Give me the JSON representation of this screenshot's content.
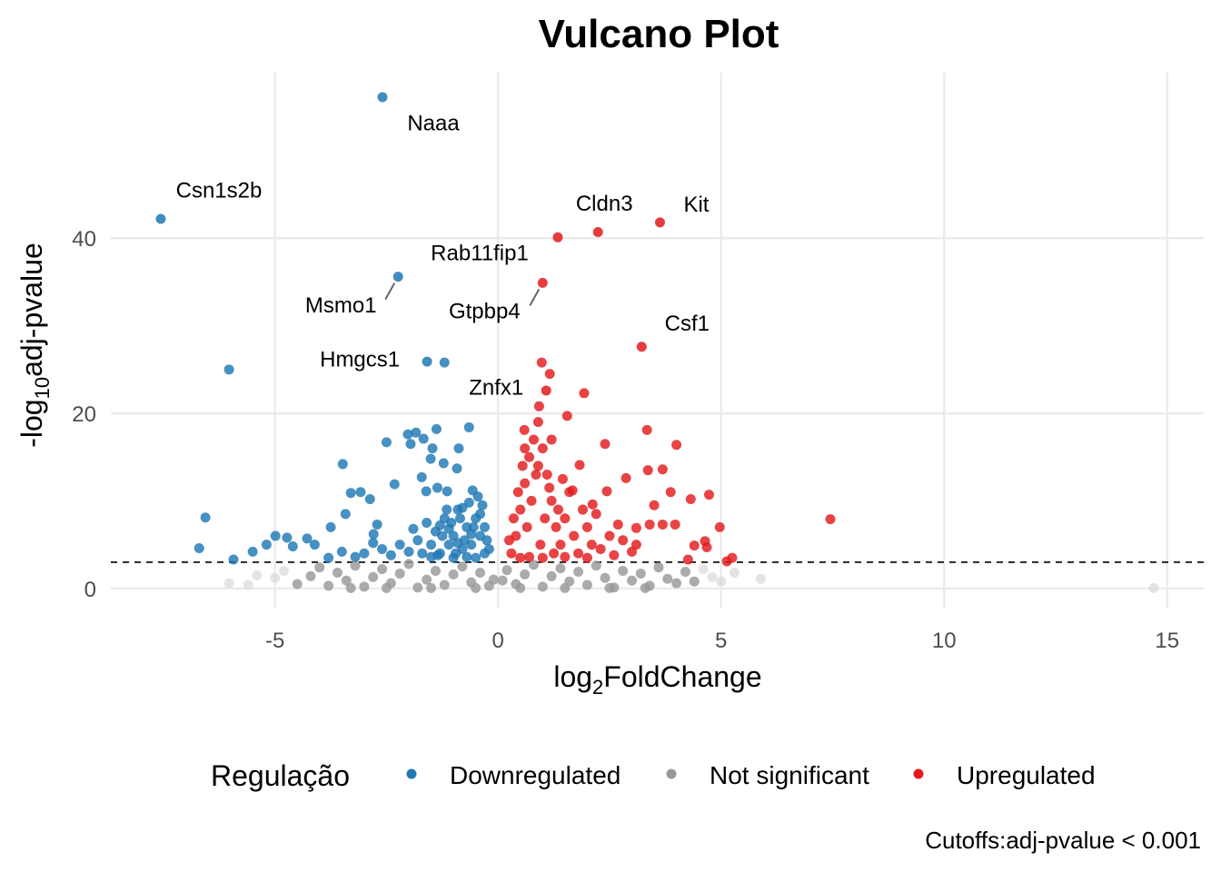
{
  "chart_data": {
    "type": "scatter",
    "title": "Vulcano Plot",
    "xlabel": {
      "main": "log",
      "sub": "2",
      "rest": "FoldChange"
    },
    "ylabel": {
      "main": "-log",
      "sub": "10",
      "rest": "adj-pvalue"
    },
    "xlim": [
      -8.68,
      15.82
    ],
    "ylim": [
      -2.3,
      58.9
    ],
    "xticks": [
      -5,
      0,
      5,
      10,
      15
    ],
    "xtick_labels": [
      "-5",
      "0",
      "5",
      "10",
      "15"
    ],
    "yticks": [
      0,
      20,
      40
    ],
    "ytick_labels": [
      "0",
      "20",
      "40"
    ],
    "grid": true,
    "cutoff_line_y": 3,
    "caption": "Cutoffs:adj-pvalue < 0.001",
    "legend": {
      "title": "Regulação",
      "position": "bottom",
      "entries": [
        "Downregulated",
        "Not significant",
        "Upregulated"
      ]
    },
    "colors": {
      "Downregulated": "#1f78b4",
      "Not significant": "#999999",
      "Upregulated": "#e31a1c"
    },
    "labeled_points": [
      {
        "gene": "Naaa",
        "x": -2.59,
        "y": 56.1,
        "group": "Downregulated"
      },
      {
        "gene": "Csn1s2b",
        "x": -7.56,
        "y": 42.2,
        "group": "Downregulated"
      },
      {
        "gene": "Cldn3",
        "x": 2.24,
        "y": 40.7,
        "group": "Upregulated"
      },
      {
        "gene": "Kit",
        "x": 3.63,
        "y": 41.8,
        "group": "Upregulated"
      },
      {
        "gene": "Rab11fip1",
        "x": 1.34,
        "y": 40.1,
        "group": "Upregulated"
      },
      {
        "gene": "Msmo1",
        "x": -2.24,
        "y": 35.6,
        "group": "Downregulated"
      },
      {
        "gene": "Gtpbp4",
        "x": 1.0,
        "y": 34.9,
        "group": "Upregulated"
      },
      {
        "gene": "Csf1",
        "x": 3.22,
        "y": 27.6,
        "group": "Upregulated"
      },
      {
        "gene": "Hmgcs1",
        "x": -1.59,
        "y": 25.9,
        "group": "Downregulated"
      },
      {
        "gene": "Znfx1",
        "x": 1.08,
        "y": 22.6,
        "group": "Upregulated"
      }
    ],
    "series": [
      {
        "name": "Not significant",
        "points": [
          [
            14.7,
            0.05
          ],
          [
            5.89,
            1.1
          ],
          [
            -6.03,
            0.6
          ],
          [
            -5.6,
            0.4
          ],
          [
            -5.4,
            1.5
          ],
          [
            -5.0,
            1.2
          ],
          [
            -4.8,
            2.0
          ],
          [
            -4.5,
            0.5
          ],
          [
            -4.2,
            1.4
          ],
          [
            -4.0,
            2.4
          ],
          [
            -3.8,
            0.3
          ],
          [
            -3.6,
            1.8
          ],
          [
            -3.4,
            0.9
          ],
          [
            -3.2,
            2.6
          ],
          [
            -3.0,
            0.2
          ],
          [
            -2.8,
            1.3
          ],
          [
            -2.6,
            2.2
          ],
          [
            -2.4,
            0.6
          ],
          [
            -2.2,
            1.7
          ],
          [
            -2.0,
            2.8
          ],
          [
            -1.8,
            0.1
          ],
          [
            -1.6,
            1.0
          ],
          [
            -1.4,
            2.0
          ],
          [
            -1.2,
            0.4
          ],
          [
            -1.0,
            1.6
          ],
          [
            -0.8,
            2.5
          ],
          [
            -0.6,
            0.7
          ],
          [
            -0.4,
            1.8
          ],
          [
            -0.2,
            0.3
          ],
          [
            -0.1,
            1.0
          ],
          [
            0.1,
            0.9
          ],
          [
            0.2,
            2.1
          ],
          [
            0.4,
            0.5
          ],
          [
            0.6,
            1.6
          ],
          [
            0.8,
            2.7
          ],
          [
            1.0,
            0.2
          ],
          [
            1.2,
            1.4
          ],
          [
            1.4,
            2.3
          ],
          [
            1.6,
            0.8
          ],
          [
            1.8,
            1.9
          ],
          [
            2.0,
            0.4
          ],
          [
            2.2,
            2.6
          ],
          [
            2.4,
            1.2
          ],
          [
            2.6,
            0.1
          ],
          [
            2.8,
            2.0
          ],
          [
            3.0,
            0.9
          ],
          [
            3.2,
            1.7
          ],
          [
            3.4,
            0.3
          ],
          [
            3.6,
            2.4
          ],
          [
            3.8,
            1.1
          ],
          [
            4.0,
            0.6
          ],
          [
            4.2,
            1.9
          ],
          [
            4.4,
            0.8
          ],
          [
            4.6,
            2.2
          ],
          [
            4.8,
            1.3
          ],
          [
            5.0,
            0.8
          ],
          [
            5.3,
            1.8
          ],
          [
            -0.5,
            0.05
          ],
          [
            0.5,
            0.05
          ],
          [
            1.5,
            0.05
          ],
          [
            -1.5,
            0.05
          ],
          [
            2.5,
            0.05
          ],
          [
            -2.5,
            0.05
          ],
          [
            3.3,
            0.05
          ],
          [
            -3.3,
            0.05
          ]
        ]
      },
      {
        "name": "Downregulated",
        "points": [
          [
            -6.03,
            25.0
          ],
          [
            -1.2,
            25.8
          ],
          [
            -6.56,
            8.1
          ],
          [
            -6.7,
            4.6
          ],
          [
            -5.93,
            3.3
          ],
          [
            -5.5,
            4.2
          ],
          [
            -5.19,
            5.0
          ],
          [
            -4.99,
            6.0
          ],
          [
            -4.73,
            5.8
          ],
          [
            -4.6,
            4.8
          ],
          [
            -4.28,
            5.7
          ],
          [
            -4.11,
            5.0
          ],
          [
            -3.75,
            7.0
          ],
          [
            -3.48,
            14.2
          ],
          [
            -3.42,
            8.5
          ],
          [
            -3.3,
            10.9
          ],
          [
            -3.08,
            11.0
          ],
          [
            -2.87,
            10.2
          ],
          [
            -2.79,
            6.2
          ],
          [
            -2.71,
            7.3
          ],
          [
            -2.5,
            16.7
          ],
          [
            -2.32,
            11.9
          ],
          [
            -2.02,
            17.6
          ],
          [
            -1.96,
            16.5
          ],
          [
            -1.84,
            17.8
          ],
          [
            -1.67,
            17.1
          ],
          [
            -1.47,
            16.0
          ],
          [
            -1.38,
            18.2
          ],
          [
            -1.71,
            12.7
          ],
          [
            -1.61,
            11.1
          ],
          [
            -1.51,
            14.8
          ],
          [
            -1.36,
            11.5
          ],
          [
            -1.22,
            14.3
          ],
          [
            -1.14,
            11.1
          ],
          [
            -0.92,
            13.7
          ],
          [
            -0.88,
            16.0
          ],
          [
            -0.65,
            18.4
          ],
          [
            -0.57,
            11.2
          ],
          [
            -0.3,
            4
          ],
          [
            -0.4,
            6
          ],
          [
            -0.5,
            8
          ],
          [
            -0.6,
            5
          ],
          [
            -0.7,
            7
          ],
          [
            -0.8,
            4.5
          ],
          [
            -0.9,
            9
          ],
          [
            -1.0,
            6
          ],
          [
            -1.1,
            5
          ],
          [
            -1.2,
            8
          ],
          [
            -1.3,
            4
          ],
          [
            -1.4,
            6.5
          ],
          [
            -1.5,
            5
          ],
          [
            -1.6,
            7.5
          ],
          [
            -1.7,
            4
          ],
          [
            -1.8,
            5.5
          ],
          [
            -1.9,
            6.8
          ],
          [
            -2.0,
            4.2
          ],
          [
            -2.2,
            5
          ],
          [
            -2.4,
            3.8
          ],
          [
            -2.6,
            4.5
          ],
          [
            -2.8,
            5.2
          ],
          [
            -3.0,
            4
          ],
          [
            -3.2,
            3.6
          ],
          [
            -3.5,
            4.2
          ],
          [
            -3.8,
            3.5
          ],
          [
            -0.35,
            9.5
          ],
          [
            -0.45,
            10.5
          ],
          [
            -0.55,
            7
          ],
          [
            -0.65,
            9.8
          ],
          [
            -0.75,
            5.5
          ],
          [
            -0.85,
            8
          ],
          [
            -0.95,
            4
          ],
          [
            -1.05,
            7.5
          ],
          [
            -1.15,
            9
          ],
          [
            -1.25,
            6
          ],
          [
            -1.35,
            3.8
          ],
          [
            -0.25,
            5.5
          ],
          [
            -0.3,
            7
          ],
          [
            -0.5,
            3.5
          ],
          [
            -0.7,
            3.6
          ],
          [
            -1.0,
            3.5
          ],
          [
            -1.5,
            3.6
          ],
          [
            -0.6,
            6.2
          ],
          [
            -0.9,
            5.2
          ],
          [
            -1.1,
            6.8
          ],
          [
            -1.3,
            7.2
          ],
          [
            -0.4,
            8.5
          ],
          [
            -0.8,
            9.2
          ],
          [
            -0.2,
            4.5
          ]
        ]
      },
      {
        "name": "Upregulated",
        "points": [
          [
            0.98,
            25.8
          ],
          [
            7.45,
            7.9
          ],
          [
            5.25,
            3.5
          ],
          [
            5.13,
            3.1
          ],
          [
            4.97,
            7.0
          ],
          [
            4.73,
            10.7
          ],
          [
            4.68,
            4.7
          ],
          [
            4.64,
            5.4
          ],
          [
            4.4,
            4.9
          ],
          [
            4.32,
            10.2
          ],
          [
            4.0,
            16.4
          ],
          [
            3.87,
            11.0
          ],
          [
            3.69,
            13.6
          ],
          [
            3.34,
            18.1
          ],
          [
            3.36,
            13.5
          ],
          [
            3.5,
            9.5
          ],
          [
            3.69,
            7.3
          ],
          [
            3.97,
            7.3
          ],
          [
            4.26,
            3.3
          ],
          [
            2.87,
            12.6
          ],
          [
            2.4,
            16.5
          ],
          [
            2.44,
            11.1
          ],
          [
            1.93,
            22.3
          ],
          [
            1.55,
            19.7
          ],
          [
            1.16,
            24.5
          ],
          [
            0.92,
            20.8
          ],
          [
            0.59,
            18.1
          ],
          [
            1.83,
            14.1
          ],
          [
            1.67,
            11.2
          ],
          [
            2.12,
            9.6
          ],
          [
            3.1,
            6.9
          ],
          [
            3.4,
            7.3
          ],
          [
            2.69,
            7.3
          ],
          [
            3.1,
            5.0
          ],
          [
            0.3,
            4
          ],
          [
            0.4,
            6
          ],
          [
            0.5,
            9
          ],
          [
            0.6,
            12
          ],
          [
            0.7,
            15
          ],
          [
            0.8,
            17
          ],
          [
            0.9,
            19
          ],
          [
            1.0,
            16
          ],
          [
            1.1,
            13
          ],
          [
            1.2,
            10
          ],
          [
            1.3,
            7
          ],
          [
            1.4,
            5
          ],
          [
            1.5,
            8
          ],
          [
            1.6,
            11
          ],
          [
            1.7,
            6
          ],
          [
            1.8,
            4
          ],
          [
            1.9,
            9
          ],
          [
            2.0,
            7
          ],
          [
            2.1,
            5
          ],
          [
            2.2,
            8.5
          ],
          [
            2.3,
            4.5
          ],
          [
            2.5,
            6
          ],
          [
            2.6,
            3.8
          ],
          [
            2.8,
            5.5
          ],
          [
            3.0,
            4.2
          ],
          [
            0.35,
            8
          ],
          [
            0.45,
            11
          ],
          [
            0.55,
            14
          ],
          [
            0.65,
            7
          ],
          [
            0.75,
            10
          ],
          [
            0.85,
            13
          ],
          [
            0.95,
            5
          ],
          [
            1.05,
            8
          ],
          [
            1.15,
            11.5
          ],
          [
            1.25,
            4
          ],
          [
            1.35,
            9
          ],
          [
            1.45,
            12.5
          ],
          [
            0.25,
            5.5
          ],
          [
            0.5,
            3.5
          ],
          [
            0.7,
            3.6
          ],
          [
            1.0,
            3.5
          ],
          [
            1.5,
            3.6
          ],
          [
            2.0,
            3.5
          ],
          [
            0.6,
            16
          ],
          [
            0.9,
            14
          ],
          [
            1.2,
            17
          ]
        ]
      }
    ]
  }
}
